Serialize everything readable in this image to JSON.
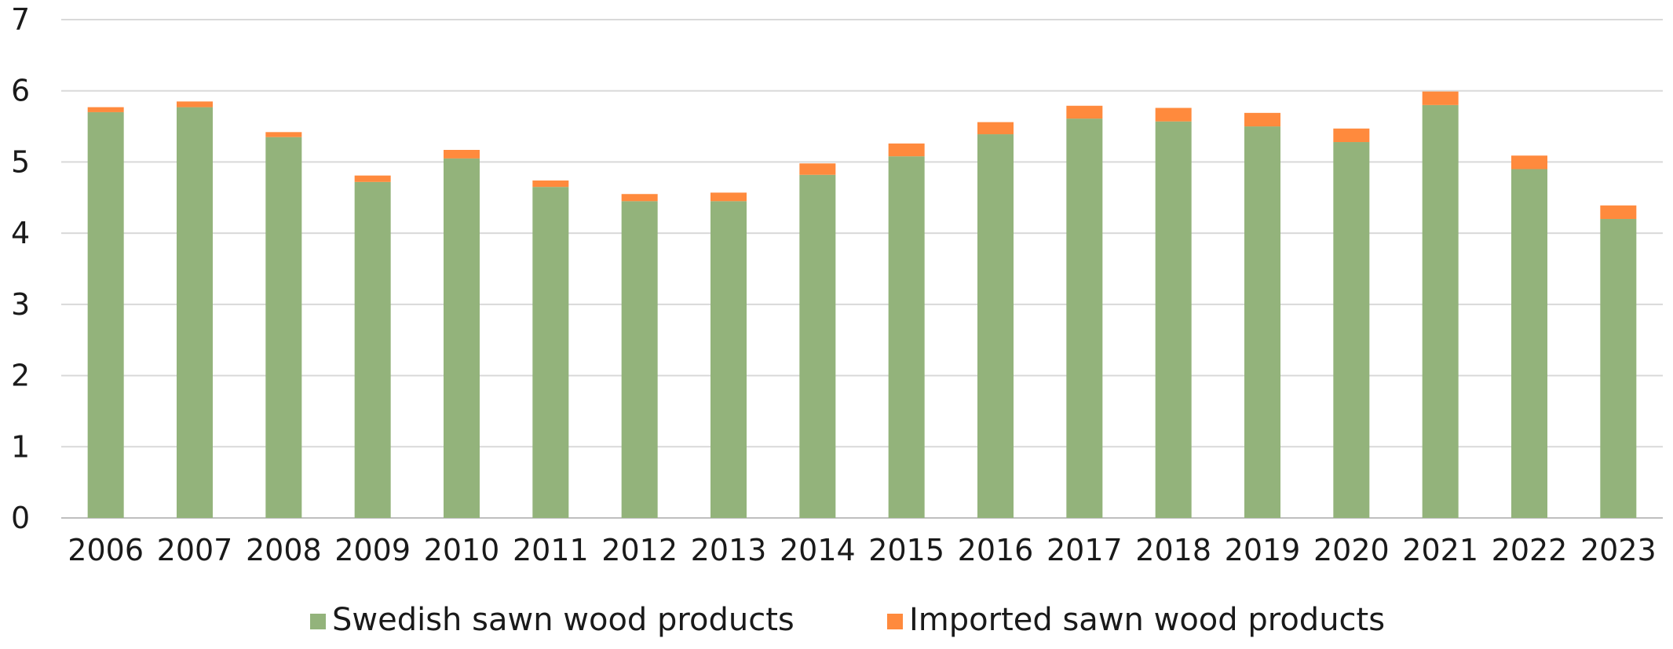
{
  "chart_data": {
    "type": "bar",
    "stacked": true,
    "title": "",
    "xlabel": "",
    "ylabel": "",
    "ylim": [
      0,
      7
    ],
    "yticks": [
      0,
      1,
      2,
      3,
      4,
      5,
      6,
      7
    ],
    "grid": true,
    "legend_position": "bottom",
    "categories": [
      "2006",
      "2007",
      "2008",
      "2009",
      "2010",
      "2011",
      "2012",
      "2013",
      "2014",
      "2015",
      "2016",
      "2017",
      "2018",
      "2019",
      "2020",
      "2021",
      "2022",
      "2023"
    ],
    "series": [
      {
        "name": "Swedish sawn wood products",
        "color": "#93B37B",
        "values": [
          5.7,
          5.77,
          5.35,
          4.72,
          5.05,
          4.65,
          4.45,
          4.45,
          4.82,
          5.08,
          5.39,
          5.61,
          5.57,
          5.5,
          5.28,
          5.8,
          4.9,
          4.2
        ]
      },
      {
        "name": "Imported sawn wood products",
        "color": "#FF8A3D",
        "values": [
          0.07,
          0.08,
          0.07,
          0.09,
          0.12,
          0.09,
          0.1,
          0.12,
          0.16,
          0.18,
          0.17,
          0.18,
          0.19,
          0.19,
          0.19,
          0.19,
          0.19,
          0.19
        ]
      }
    ]
  }
}
